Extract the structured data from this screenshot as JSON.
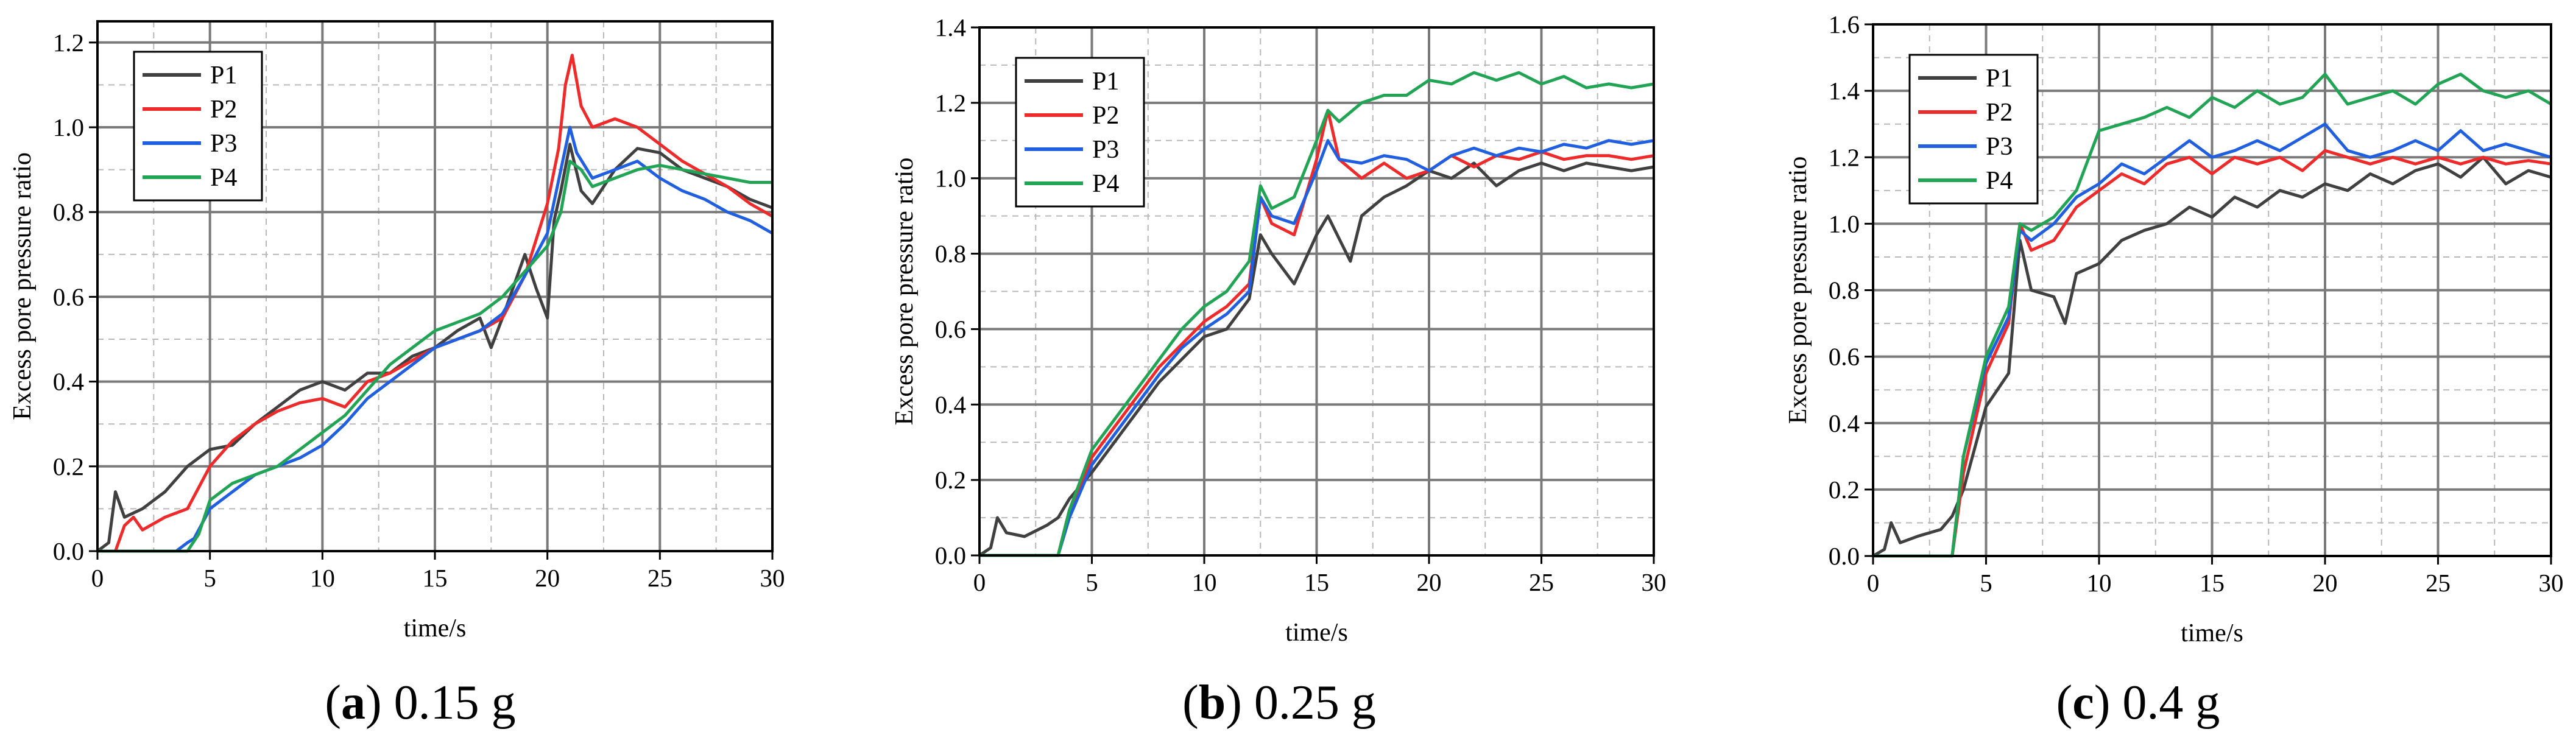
{
  "colors": {
    "P1": "#404040",
    "P2": "#ee2a2a",
    "P3": "#1f5fe0",
    "P4": "#22a455"
  },
  "chart_data": [
    {
      "type": "line",
      "caption_letter": "a",
      "caption_text": "0.15 g",
      "xlabel": "time/s",
      "ylabel": "Excess pore pressure ratio",
      "xlim": [
        0,
        30
      ],
      "ylim": [
        0,
        1.25
      ],
      "xticks": [
        0,
        5,
        10,
        15,
        20,
        25,
        30
      ],
      "yticks": [
        0.0,
        0.2,
        0.4,
        0.6,
        0.8,
        1.0,
        1.2
      ],
      "ytick_labels": [
        "0.0",
        "0.2",
        "0.4",
        "0.6",
        "0.8",
        "1.0",
        "1.2"
      ],
      "grid": true,
      "legend_position": "top-left",
      "series": [
        {
          "name": "P1",
          "x": [
            0,
            0.5,
            0.8,
            1.2,
            2,
            3,
            4,
            5,
            6,
            7,
            8,
            9,
            10,
            11,
            12,
            13,
            14,
            15,
            16,
            17,
            17.5,
            18,
            19,
            19.5,
            20,
            20.3,
            20.6,
            21,
            21.5,
            22,
            23,
            24,
            25,
            26,
            27,
            28,
            29,
            30
          ],
          "y": [
            0,
            0.02,
            0.14,
            0.08,
            0.1,
            0.14,
            0.2,
            0.24,
            0.25,
            0.3,
            0.34,
            0.38,
            0.4,
            0.38,
            0.42,
            0.42,
            0.46,
            0.48,
            0.52,
            0.55,
            0.48,
            0.55,
            0.7,
            0.62,
            0.55,
            0.78,
            0.85,
            0.96,
            0.85,
            0.82,
            0.9,
            0.95,
            0.94,
            0.9,
            0.88,
            0.86,
            0.83,
            0.81
          ]
        },
        {
          "name": "P2",
          "x": [
            0,
            0.8,
            1.2,
            1.6,
            2,
            3,
            4,
            5,
            6,
            7,
            8,
            9,
            10,
            11,
            12,
            13,
            14,
            15,
            16,
            17,
            18,
            19,
            20,
            20.5,
            20.8,
            21.1,
            21.5,
            22,
            23,
            24,
            25,
            26,
            27,
            28,
            29,
            30
          ],
          "y": [
            0,
            0,
            0.06,
            0.08,
            0.05,
            0.08,
            0.1,
            0.2,
            0.26,
            0.3,
            0.33,
            0.35,
            0.36,
            0.34,
            0.4,
            0.42,
            0.45,
            0.48,
            0.5,
            0.52,
            0.55,
            0.65,
            0.82,
            0.95,
            1.1,
            1.17,
            1.05,
            1.0,
            1.02,
            1.0,
            0.96,
            0.92,
            0.89,
            0.86,
            0.82,
            0.79
          ]
        },
        {
          "name": "P3",
          "x": [
            0,
            3.5,
            4,
            4.3,
            5,
            6,
            7,
            8,
            9,
            10,
            11,
            12,
            13,
            14,
            15,
            16,
            17,
            18,
            19,
            20,
            20.6,
            21,
            21.3,
            22,
            23,
            24,
            25,
            26,
            27,
            28,
            29,
            30
          ],
          "y": [
            0,
            0,
            0.02,
            0.03,
            0.1,
            0.14,
            0.18,
            0.2,
            0.22,
            0.25,
            0.3,
            0.36,
            0.4,
            0.44,
            0.48,
            0.5,
            0.52,
            0.56,
            0.65,
            0.75,
            0.9,
            1.0,
            0.94,
            0.88,
            0.9,
            0.92,
            0.88,
            0.85,
            0.83,
            0.8,
            0.78,
            0.75
          ]
        },
        {
          "name": "P4",
          "x": [
            0,
            4,
            4.5,
            5,
            6,
            7,
            8,
            9,
            10,
            11,
            12,
            13,
            14,
            15,
            16,
            17,
            18,
            19,
            20,
            20.6,
            21,
            21.5,
            22,
            23,
            24,
            25,
            26,
            27,
            28,
            29,
            30
          ],
          "y": [
            0,
            0,
            0.04,
            0.12,
            0.16,
            0.18,
            0.2,
            0.24,
            0.28,
            0.32,
            0.38,
            0.44,
            0.48,
            0.52,
            0.54,
            0.56,
            0.6,
            0.66,
            0.72,
            0.8,
            0.92,
            0.9,
            0.86,
            0.88,
            0.9,
            0.91,
            0.9,
            0.89,
            0.88,
            0.87,
            0.87
          ]
        }
      ]
    },
    {
      "type": "line",
      "caption_letter": "b",
      "caption_text": "0.25 g",
      "xlabel": "time/s",
      "ylabel": "Excess pore pressure ratio",
      "xlim": [
        0,
        30
      ],
      "ylim": [
        0,
        1.4
      ],
      "xticks": [
        0,
        5,
        10,
        15,
        20,
        25,
        30
      ],
      "yticks": [
        0.0,
        0.2,
        0.4,
        0.6,
        0.8,
        1.0,
        1.2,
        1.4
      ],
      "ytick_labels": [
        "0.0",
        "0.2",
        "0.4",
        "0.6",
        "0.8",
        "1.0",
        "1.2",
        "1.4"
      ],
      "grid": true,
      "legend_position": "top-left",
      "series": [
        {
          "name": "P1",
          "x": [
            0,
            0.5,
            0.8,
            1.2,
            2,
            3,
            3.5,
            4,
            5,
            6,
            7,
            8,
            9,
            10,
            11,
            12,
            12.5,
            13,
            14,
            15,
            15.5,
            16,
            16.5,
            17,
            18,
            19,
            20,
            21,
            22,
            23,
            24,
            25,
            26,
            27,
            28,
            29,
            30
          ],
          "y": [
            0,
            0.02,
            0.1,
            0.06,
            0.05,
            0.08,
            0.1,
            0.15,
            0.22,
            0.3,
            0.38,
            0.46,
            0.52,
            0.58,
            0.6,
            0.68,
            0.85,
            0.8,
            0.72,
            0.85,
            0.9,
            0.84,
            0.78,
            0.9,
            0.95,
            0.98,
            1.02,
            1.0,
            1.04,
            0.98,
            1.02,
            1.04,
            1.02,
            1.04,
            1.03,
            1.02,
            1.03
          ]
        },
        {
          "name": "P2",
          "x": [
            0,
            3.5,
            4,
            5,
            6,
            7,
            8,
            9,
            10,
            11,
            12,
            12.5,
            13,
            14,
            15,
            15.5,
            16,
            17,
            18,
            19,
            20,
            21,
            22,
            23,
            24,
            25,
            26,
            27,
            28,
            29,
            30
          ],
          "y": [
            0,
            0,
            0.12,
            0.26,
            0.34,
            0.42,
            0.5,
            0.56,
            0.62,
            0.66,
            0.72,
            0.95,
            0.88,
            0.85,
            1.05,
            1.18,
            1.05,
            1.0,
            1.04,
            1.0,
            1.02,
            1.06,
            1.03,
            1.06,
            1.05,
            1.07,
            1.05,
            1.06,
            1.06,
            1.05,
            1.06
          ]
        },
        {
          "name": "P3",
          "x": [
            0,
            3.5,
            4,
            5,
            6,
            7,
            8,
            9,
            10,
            11,
            12,
            12.5,
            13,
            14,
            15,
            15.5,
            16,
            17,
            18,
            19,
            20,
            21,
            22,
            23,
            24,
            25,
            26,
            27,
            28,
            29,
            30
          ],
          "y": [
            0,
            0,
            0.1,
            0.24,
            0.32,
            0.4,
            0.48,
            0.55,
            0.6,
            0.64,
            0.7,
            0.95,
            0.9,
            0.88,
            1.02,
            1.1,
            1.05,
            1.04,
            1.06,
            1.05,
            1.02,
            1.06,
            1.08,
            1.06,
            1.08,
            1.07,
            1.09,
            1.08,
            1.1,
            1.09,
            1.1
          ]
        },
        {
          "name": "P4",
          "x": [
            0,
            3.5,
            4,
            5,
            6,
            7,
            8,
            9,
            10,
            11,
            12,
            12.5,
            13,
            14,
            15,
            15.5,
            16,
            17,
            18,
            19,
            20,
            21,
            22,
            23,
            24,
            25,
            26,
            27,
            28,
            29,
            30
          ],
          "y": [
            0,
            0,
            0.12,
            0.28,
            0.36,
            0.44,
            0.52,
            0.6,
            0.66,
            0.7,
            0.78,
            0.98,
            0.92,
            0.95,
            1.1,
            1.18,
            1.15,
            1.2,
            1.22,
            1.22,
            1.26,
            1.25,
            1.28,
            1.26,
            1.28,
            1.25,
            1.27,
            1.24,
            1.25,
            1.24,
            1.25
          ]
        }
      ]
    },
    {
      "type": "line",
      "caption_letter": "c",
      "caption_text": "0.4 g",
      "xlabel": "time/s",
      "ylabel": "Excess pore pressure ratio",
      "xlim": [
        0,
        30
      ],
      "ylim": [
        0,
        1.6
      ],
      "xticks": [
        0,
        5,
        10,
        15,
        20,
        25,
        30
      ],
      "yticks": [
        0.0,
        0.2,
        0.4,
        0.6,
        0.8,
        1.0,
        1.2,
        1.4,
        1.6
      ],
      "ytick_labels": [
        "0.0",
        "0.2",
        "0.4",
        "0.6",
        "0.8",
        "1.0",
        "1.2",
        "1.4",
        "1.6"
      ],
      "grid": true,
      "legend_position": "top-left",
      "series": [
        {
          "name": "P1",
          "x": [
            0,
            0.5,
            0.8,
            1.2,
            2,
            3,
            3.5,
            4,
            5,
            6,
            6.5,
            7,
            8,
            8.5,
            9,
            10,
            11,
            12,
            13,
            14,
            15,
            16,
            17,
            18,
            19,
            20,
            21,
            22,
            23,
            24,
            25,
            26,
            27,
            28,
            29,
            30
          ],
          "y": [
            0,
            0.02,
            0.1,
            0.04,
            0.06,
            0.08,
            0.12,
            0.2,
            0.45,
            0.55,
            0.95,
            0.8,
            0.78,
            0.7,
            0.85,
            0.88,
            0.95,
            0.98,
            1.0,
            1.05,
            1.02,
            1.08,
            1.05,
            1.1,
            1.08,
            1.12,
            1.1,
            1.15,
            1.12,
            1.16,
            1.18,
            1.14,
            1.2,
            1.12,
            1.16,
            1.14
          ]
        },
        {
          "name": "P2",
          "x": [
            0,
            3.5,
            4,
            5,
            6,
            6.5,
            7,
            8,
            9,
            10,
            11,
            12,
            13,
            14,
            15,
            16,
            17,
            18,
            19,
            20,
            21,
            22,
            23,
            24,
            25,
            26,
            27,
            28,
            29,
            30
          ],
          "y": [
            0,
            0,
            0.25,
            0.55,
            0.7,
            1.0,
            0.92,
            0.95,
            1.05,
            1.1,
            1.15,
            1.12,
            1.18,
            1.2,
            1.15,
            1.2,
            1.18,
            1.2,
            1.16,
            1.22,
            1.2,
            1.18,
            1.2,
            1.18,
            1.2,
            1.18,
            1.2,
            1.18,
            1.19,
            1.18
          ]
        },
        {
          "name": "P3",
          "x": [
            0,
            3.5,
            4,
            5,
            6,
            6.5,
            7,
            8,
            9,
            10,
            11,
            12,
            13,
            14,
            15,
            16,
            17,
            18,
            19,
            20,
            21,
            22,
            23,
            24,
            25,
            26,
            27,
            28,
            29,
            30
          ],
          "y": [
            0,
            0,
            0.3,
            0.58,
            0.72,
            0.98,
            0.95,
            1.0,
            1.08,
            1.12,
            1.18,
            1.15,
            1.2,
            1.25,
            1.2,
            1.22,
            1.25,
            1.22,
            1.26,
            1.3,
            1.22,
            1.2,
            1.22,
            1.25,
            1.22,
            1.28,
            1.22,
            1.24,
            1.22,
            1.2
          ]
        },
        {
          "name": "P4",
          "x": [
            0,
            3.5,
            4,
            5,
            6,
            6.5,
            7,
            8,
            9,
            10,
            11,
            12,
            13,
            14,
            15,
            16,
            17,
            18,
            19,
            20,
            21,
            22,
            23,
            24,
            25,
            26,
            27,
            28,
            29,
            30
          ],
          "y": [
            0,
            0,
            0.3,
            0.6,
            0.75,
            1.0,
            0.98,
            1.02,
            1.1,
            1.28,
            1.3,
            1.32,
            1.35,
            1.32,
            1.38,
            1.35,
            1.4,
            1.36,
            1.38,
            1.45,
            1.36,
            1.38,
            1.4,
            1.36,
            1.42,
            1.45,
            1.4,
            1.38,
            1.4,
            1.36
          ]
        }
      ]
    }
  ]
}
